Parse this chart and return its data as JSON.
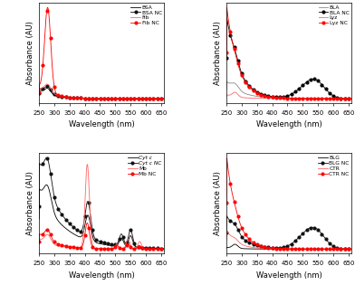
{
  "panel_labels": [
    [
      "BSA",
      "BSA NC",
      "Fib",
      "Fib NC"
    ],
    [
      "BLA",
      "BLA NC",
      "Lyz",
      "Lyz NC"
    ],
    [
      "Cyt c",
      "Cyt c NC",
      "Mb",
      "Mb NC"
    ],
    [
      "BLG",
      "BLG NC",
      "CTR",
      "CTR NC"
    ]
  ],
  "ylabel": "Absorbance (AU)",
  "xlabel": "Wavelength (nm)",
  "xticks": [
    250,
    300,
    350,
    400,
    450,
    500,
    550,
    600,
    650
  ],
  "xticklabels": [
    "250",
    "300",
    "350",
    "400",
    "450",
    "500",
    "550",
    "600",
    "650"
  ]
}
